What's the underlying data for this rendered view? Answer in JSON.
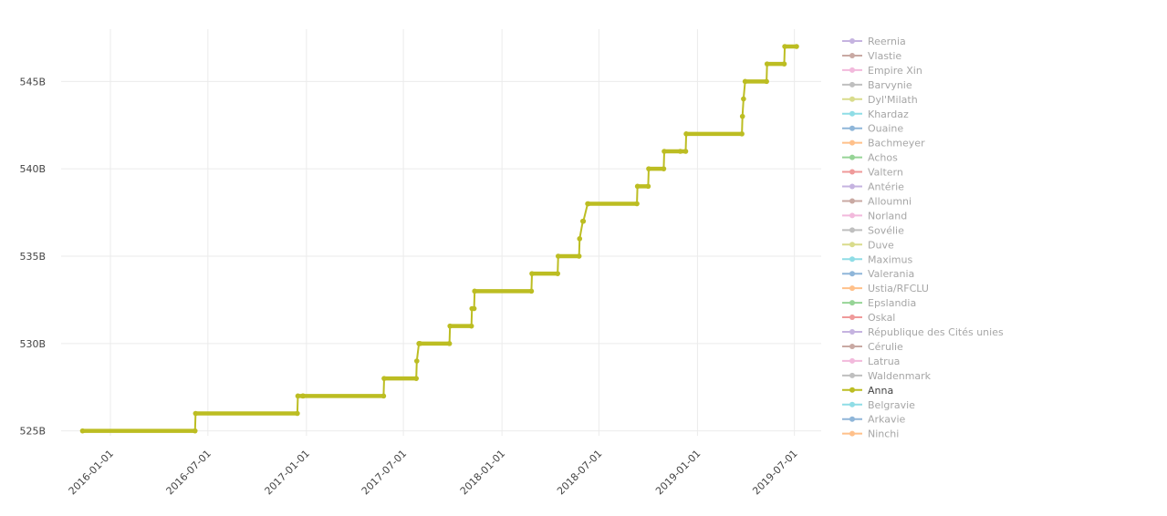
{
  "chart_data": {
    "type": "line",
    "title": "",
    "xlabel": "",
    "ylabel": "",
    "ylim": [
      524.2,
      548.2
    ],
    "xlim": [
      "2015-10-01",
      "2019-08-20"
    ],
    "grid": true,
    "legend_position": "right",
    "y_ticks": [
      {
        "value": 525,
        "label": "525B"
      },
      {
        "value": 530,
        "label": "530B"
      },
      {
        "value": 535,
        "label": "535B"
      },
      {
        "value": 540,
        "label": "540B"
      },
      {
        "value": 545,
        "label": "545B"
      }
    ],
    "x_ticks": [
      {
        "value": "2016-01-01",
        "label": "2016-01-01"
      },
      {
        "value": "2016-07-01",
        "label": "2016-07-01"
      },
      {
        "value": "2017-01-01",
        "label": "2017-01-01"
      },
      {
        "value": "2017-07-01",
        "label": "2017-07-01"
      },
      {
        "value": "2018-01-01",
        "label": "2018-01-01"
      },
      {
        "value": "2018-07-01",
        "label": "2018-07-01"
      },
      {
        "value": "2019-01-01",
        "label": "2019-01-01"
      },
      {
        "value": "2019-07-01",
        "label": "2019-07-01"
      }
    ],
    "legend": [
      {
        "name": "Reernia",
        "color": "#c5b3e0",
        "active": false
      },
      {
        "name": "Vlastie",
        "color": "#c9a9a3",
        "active": false
      },
      {
        "name": "Empire Xin",
        "color": "#f2b9dc",
        "active": false
      },
      {
        "name": "Barvynie",
        "color": "#bfbfbf",
        "active": false
      },
      {
        "name": "Dyl'Milath",
        "color": "#d9dc8c",
        "active": false
      },
      {
        "name": "Khardaz",
        "color": "#8fdde6",
        "active": false
      },
      {
        "name": "Ouaine",
        "color": "#8fb6d9",
        "active": false
      },
      {
        "name": "Bachmeyer",
        "color": "#ffc08a",
        "active": false
      },
      {
        "name": "Achos",
        "color": "#96d496",
        "active": false
      },
      {
        "name": "Valtern",
        "color": "#ef9a9a",
        "active": false
      },
      {
        "name": "Antérie",
        "color": "#c5b3e0",
        "active": false
      },
      {
        "name": "Alloumni",
        "color": "#c9a9a3",
        "active": false
      },
      {
        "name": "Norland",
        "color": "#f2b9dc",
        "active": false
      },
      {
        "name": "Sovélie",
        "color": "#bfbfbf",
        "active": false
      },
      {
        "name": "Duve",
        "color": "#d9dc8c",
        "active": false
      },
      {
        "name": "Maximus",
        "color": "#8fdde6",
        "active": false
      },
      {
        "name": "Valerania",
        "color": "#8fb6d9",
        "active": false
      },
      {
        "name": "Ustia/RFCLU",
        "color": "#ffc08a",
        "active": false
      },
      {
        "name": "Epslandia",
        "color": "#96d496",
        "active": false
      },
      {
        "name": "Oskal",
        "color": "#ef9a9a",
        "active": false
      },
      {
        "name": "République des Cités unies",
        "color": "#c5b3e0",
        "active": false
      },
      {
        "name": "Cérulie",
        "color": "#c9a9a3",
        "active": false
      },
      {
        "name": "Latrua",
        "color": "#f2b9dc",
        "active": false
      },
      {
        "name": "Waldenmark",
        "color": "#bfbfbf",
        "active": false
      },
      {
        "name": "Anna",
        "color": "#bcbd22",
        "active": true
      },
      {
        "name": "Belgravie",
        "color": "#8fdde6",
        "active": false
      },
      {
        "name": "Arkavie",
        "color": "#8fb6d9",
        "active": false
      },
      {
        "name": "Ninchi",
        "color": "#ffc08a",
        "active": false
      }
    ],
    "series": [
      {
        "name": "Anna",
        "color": "#bcbd22",
        "x": [
          "2015-11-10",
          "2016-06-07",
          "2016-06-08",
          "2016-12-15",
          "2016-12-16",
          "2016-12-25",
          "2016-12-26",
          "2017-05-25",
          "2017-05-26",
          "2017-07-25",
          "2017-07-26",
          "2017-07-30",
          "2017-08-01",
          "2017-09-25",
          "2017-09-26",
          "2017-11-05",
          "2017-11-06",
          "2017-11-10",
          "2017-11-11",
          "2018-02-25",
          "2018-02-26",
          "2018-04-15",
          "2018-04-16",
          "2018-05-25",
          "2018-05-26",
          "2018-06-01",
          "2018-06-02",
          "2018-06-10",
          "2018-06-11",
          "2018-09-10",
          "2018-09-11",
          "2018-10-01",
          "2018-10-02",
          "2018-10-30",
          "2018-10-31",
          "2018-11-30",
          "2018-12-10",
          "2018-12-11",
          "2019-03-25",
          "2019-03-26",
          "2019-03-28",
          "2019-03-31",
          "2019-05-10",
          "2019-05-11",
          "2019-06-12",
          "2019-06-13",
          "2019-07-05"
        ],
        "y": [
          525,
          525,
          526,
          526,
          527,
          527,
          527,
          527,
          528,
          528,
          529,
          530,
          530,
          530,
          531,
          531,
          532,
          532,
          533,
          533,
          534,
          534,
          535,
          535,
          536,
          537,
          537,
          538,
          538,
          538,
          539,
          539,
          540,
          540,
          541,
          541,
          541,
          542,
          542,
          543,
          544,
          545,
          545,
          546,
          546,
          547,
          547
        ]
      }
    ]
  }
}
